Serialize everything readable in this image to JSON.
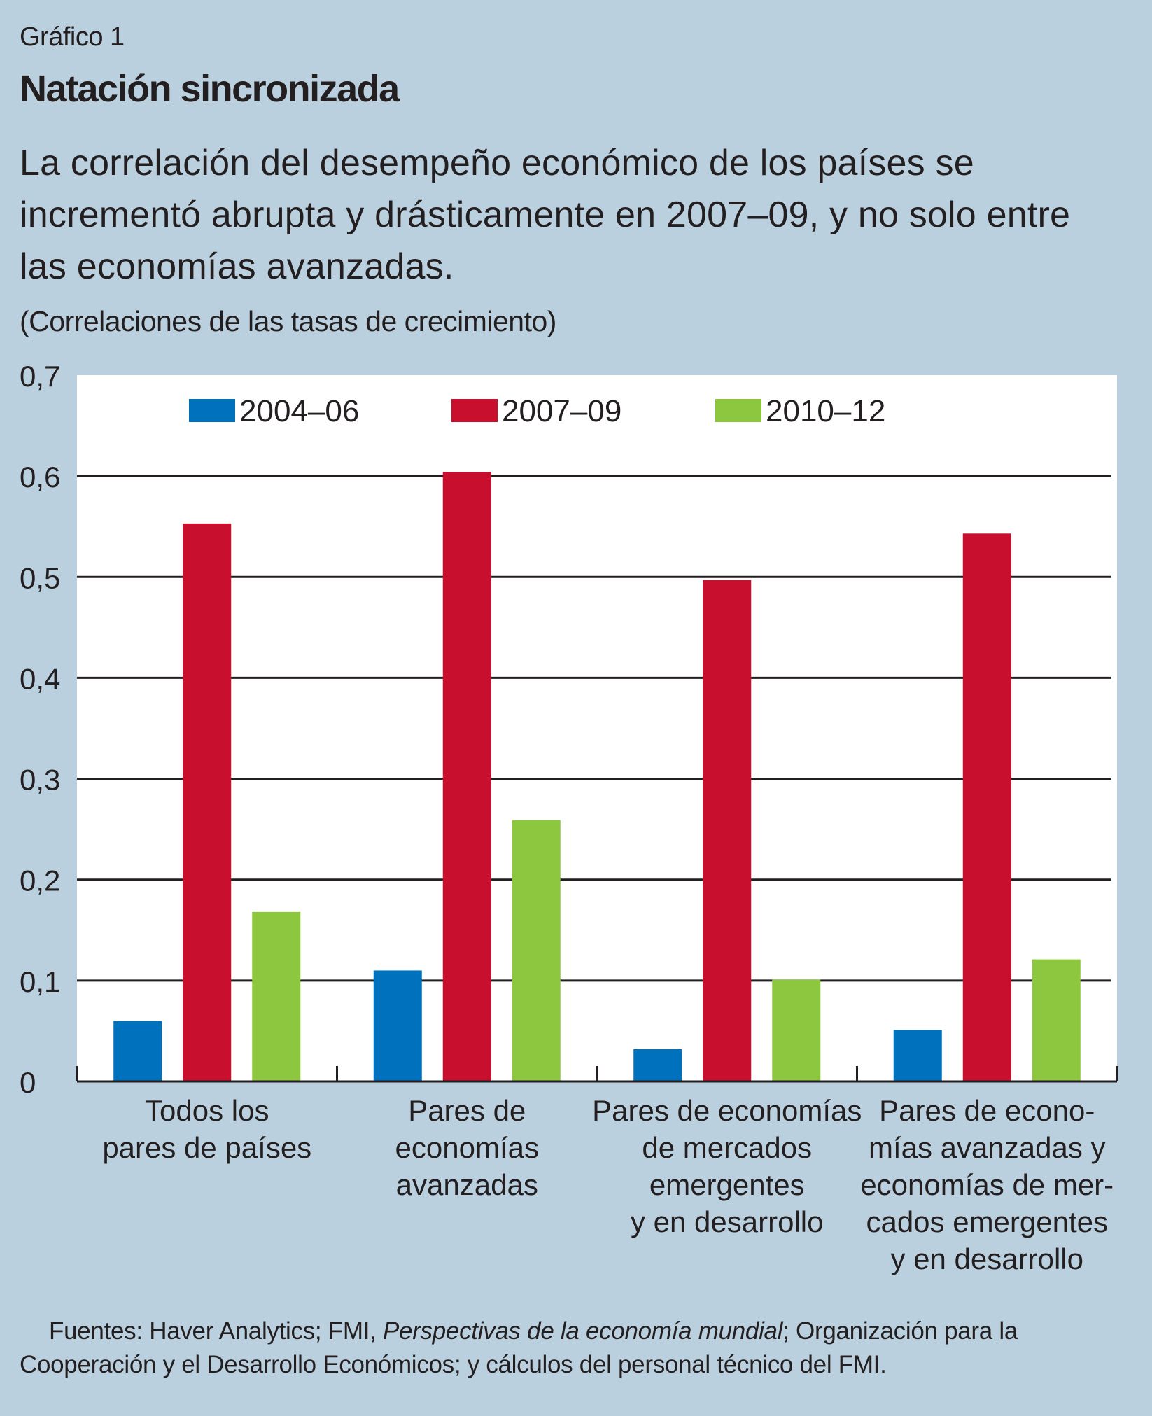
{
  "header": {
    "kicker": "Gráfico 1",
    "title": "Natación sincronizada",
    "subtitle": "La correlación del desempeño económico de los países se incrementó abrupta y drásticamente en 2007–09, y no solo entre las economías avanzadas.",
    "units": "(Correlaciones de las tasas de crecimiento)"
  },
  "chart_data": {
    "type": "bar",
    "title": "Natación sincronizada",
    "ylabel": "(Correlaciones de las tasas de crecimiento)",
    "xlabel": "",
    "ylim": [
      0,
      0.7
    ],
    "yticks": [
      "0",
      "0,1",
      "0,2",
      "0,3",
      "0,4",
      "0,5",
      "0,6",
      "0,7"
    ],
    "grid": true,
    "legend_position": "top",
    "categories": [
      [
        "Todos los",
        "pares de países"
      ],
      [
        "Pares de",
        "economías",
        "avanzadas"
      ],
      [
        "Pares de economías",
        "de mercados",
        "emergentes",
        "y en desarrollo"
      ],
      [
        "Pares de econo-",
        "mías avanzadas y",
        "economías de mer-",
        "cados emergentes",
        "y en desarrollo"
      ]
    ],
    "series": [
      {
        "name": "2004–06",
        "color": "#0071bc",
        "values": [
          0.06,
          0.11,
          0.032,
          0.051
        ]
      },
      {
        "name": "2007–09",
        "color": "#c8102e",
        "values": [
          0.553,
          0.604,
          0.497,
          0.543
        ]
      },
      {
        "name": "2010–12",
        "color": "#8dc63f",
        "values": [
          0.168,
          0.259,
          0.101,
          0.121
        ]
      }
    ]
  },
  "footer": {
    "source_prefix": "Fuentes: Haver Analytics; FMI, ",
    "source_italic": "Perspectivas de la economía mundial",
    "source_suffix": "; Organización para la Cooperación y el Desarrollo Económicos; y cálculos del personal técnico del FMI."
  }
}
